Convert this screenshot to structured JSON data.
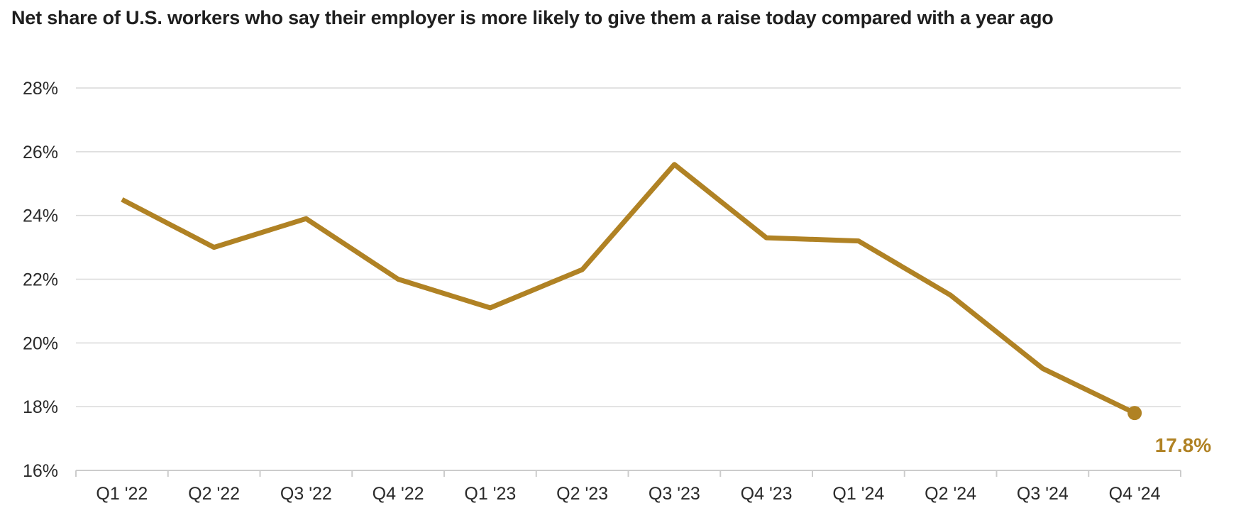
{
  "chart_data": {
    "type": "line",
    "title": "Net share of U.S. workers who say their employer is more likely to give them a raise today compared with a year ago",
    "xlabel": "",
    "ylabel": "",
    "categories": [
      "Q1 '22",
      "Q2 '22",
      "Q3 '22",
      "Q4 '22",
      "Q1 '23",
      "Q2 '23",
      "Q3 '23",
      "Q4 '23",
      "Q1 '24",
      "Q2 '24",
      "Q3 '24",
      "Q4 '24"
    ],
    "series": [
      {
        "values": [
          24.5,
          23.0,
          23.9,
          22.0,
          21.1,
          22.3,
          25.6,
          23.3,
          23.2,
          21.5,
          19.2,
          17.8
        ]
      }
    ],
    "ylim": [
      16,
      28
    ],
    "yticks": [
      16,
      18,
      20,
      22,
      24,
      26,
      28
    ],
    "ytick_format": "%",
    "grid": true,
    "end_label": "17.8%",
    "colors": {
      "line": "#b08224",
      "grid": "#d9d9d9",
      "axis": "#cccccc",
      "text": "#2a2a2a"
    }
  }
}
